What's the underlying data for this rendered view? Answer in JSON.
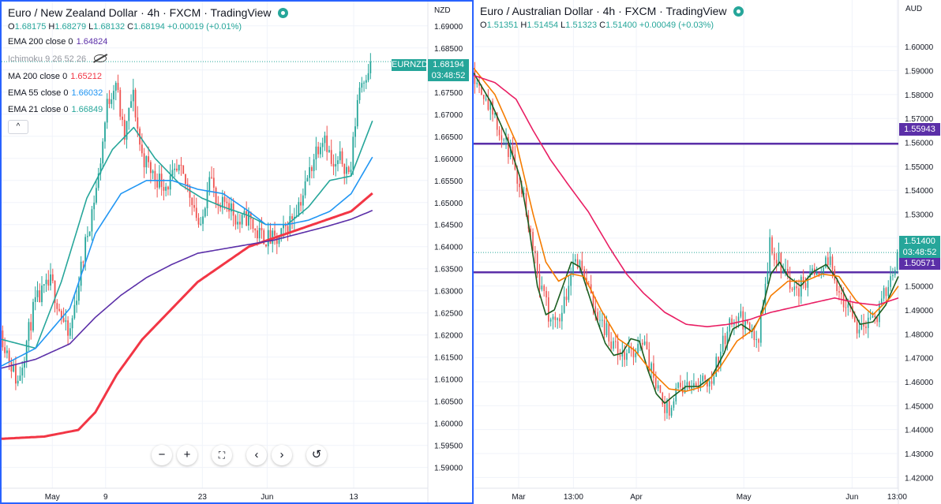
{
  "left": {
    "title": "Euro / New Zealand Dollar · 4h · FXCM · TradingView",
    "ohlc": {
      "o": "1.68175",
      "h": "1.68279",
      "l": "1.68132",
      "c": "1.68194",
      "chg": "+0.00019 (+0.01%)"
    },
    "indicators": [
      {
        "label": "EMA 200 close 0",
        "value": "1.64824",
        "color": "#5b2fa8"
      },
      {
        "label": "Ichimoku 9 26 52 26",
        "value": "",
        "color": "#9598a1",
        "hidden": true
      },
      {
        "label": "MA 200 close 0",
        "value": "1.65212",
        "color": "#f23645"
      },
      {
        "label": "EMA 55 close 0",
        "value": "1.66032",
        "color": "#2196f3"
      },
      {
        "label": "EMA 21 close 0",
        "value": "1.66849",
        "color": "#26a69a"
      }
    ],
    "collapse_label": "^",
    "currency": "NZD",
    "symbol_tag": "EURNZD",
    "last_price": "1.68194",
    "countdown": "03:48:52",
    "nav_buttons": [
      "−",
      "+",
      "⛶",
      "‹",
      "›",
      "↺"
    ]
  },
  "right": {
    "title": "Euro / Australian Dollar · 4h · FXCM · TradingView",
    "ohlc": {
      "o": "1.51351",
      "h": "1.51454",
      "l": "1.51323",
      "c": "1.51400",
      "chg": "+0.00049 (+0.03%)"
    },
    "currency": "AUD",
    "last_price": "1.51400",
    "countdown": "03:48:52",
    "level1_label": "1.55943",
    "level2_label": "1.50571"
  },
  "chart_data": [
    {
      "type": "candlestick",
      "symbol": "EURNZD",
      "timeframe": "4h",
      "title": "Euro / New Zealand Dollar · 4h · FXCM · TradingView",
      "currency": "NZD",
      "ylim": [
        1.5853,
        1.6955
      ],
      "yticks": [
        1.69,
        1.685,
        1.68,
        1.675,
        1.67,
        1.665,
        1.66,
        1.655,
        1.65,
        1.645,
        1.64,
        1.635,
        1.63,
        1.625,
        1.62,
        1.615,
        1.61,
        1.605,
        1.6,
        1.595,
        1.59
      ],
      "ytick_labels": [
        "1.69000",
        "1.68500",
        "1.68000",
        "1.67500",
        "1.67000",
        "1.66500",
        "1.66000",
        "1.65500",
        "1.65000",
        "1.64500",
        "1.64000",
        "1.63500",
        "1.63000",
        "1.62500",
        "1.62000",
        "1.61500",
        "1.61000",
        "1.60500",
        "1.60000",
        "1.59500",
        "1.59000"
      ],
      "xticks": [
        "May",
        "9",
        "23",
        "Jun",
        "13"
      ],
      "xtick_index": [
        0.119,
        0.244,
        0.471,
        0.623,
        0.826
      ],
      "price_anchors": [
        [
          0,
          1.621
        ],
        [
          0.04,
          1.609
        ],
        [
          0.08,
          1.627
        ],
        [
          0.119,
          1.632
        ],
        [
          0.16,
          1.619
        ],
        [
          0.2,
          1.641
        ],
        [
          0.23,
          1.656
        ],
        [
          0.25,
          1.672
        ],
        [
          0.27,
          1.678
        ],
        [
          0.29,
          1.664
        ],
        [
          0.31,
          1.675
        ],
        [
          0.33,
          1.661
        ],
        [
          0.36,
          1.656
        ],
        [
          0.39,
          1.654
        ],
        [
          0.42,
          1.657
        ],
        [
          0.45,
          1.651
        ],
        [
          0.47,
          1.643
        ],
        [
          0.49,
          1.658
        ],
        [
          0.51,
          1.647
        ],
        [
          0.53,
          1.651
        ],
        [
          0.56,
          1.645
        ],
        [
          0.58,
          1.647
        ],
        [
          0.6,
          1.643
        ],
        [
          0.623,
          1.642
        ],
        [
          0.65,
          1.641
        ],
        [
          0.68,
          1.646
        ],
        [
          0.71,
          1.652
        ],
        [
          0.74,
          1.662
        ],
        [
          0.76,
          1.666
        ],
        [
          0.78,
          1.657
        ],
        [
          0.8,
          1.66
        ],
        [
          0.82,
          1.656
        ],
        [
          0.84,
          1.676
        ],
        [
          0.86,
          1.68
        ],
        [
          0.868,
          1.6819
        ]
      ],
      "series": [
        {
          "name": "EMA 21 close 0",
          "color": "#26a69a",
          "points": [
            [
              0,
              1.619
            ],
            [
              0.08,
              1.617
            ],
            [
              0.14,
              1.632
            ],
            [
              0.2,
              1.651
            ],
            [
              0.26,
              1.662
            ],
            [
              0.31,
              1.667
            ],
            [
              0.36,
              1.66
            ],
            [
              0.42,
              1.654
            ],
            [
              0.47,
              1.651
            ],
            [
              0.52,
              1.649
            ],
            [
              0.58,
              1.647
            ],
            [
              0.62,
              1.645
            ],
            [
              0.67,
              1.645
            ],
            [
              0.72,
              1.649
            ],
            [
              0.77,
              1.655
            ],
            [
              0.82,
              1.656
            ],
            [
              0.87,
              1.6685
            ]
          ]
        },
        {
          "name": "EMA 55 close 0",
          "color": "#2196f3",
          "points": [
            [
              0,
              1.613
            ],
            [
              0.08,
              1.617
            ],
            [
              0.16,
              1.626
            ],
            [
              0.22,
              1.643
            ],
            [
              0.28,
              1.652
            ],
            [
              0.34,
              1.655
            ],
            [
              0.4,
              1.655
            ],
            [
              0.46,
              1.653
            ],
            [
              0.52,
              1.652
            ],
            [
              0.58,
              1.648
            ],
            [
              0.62,
              1.645
            ],
            [
              0.67,
              1.645
            ],
            [
              0.72,
              1.646
            ],
            [
              0.77,
              1.648
            ],
            [
              0.82,
              1.652
            ],
            [
              0.87,
              1.6603
            ]
          ]
        },
        {
          "name": "MA 200 close 0",
          "color": "#f23645",
          "points": [
            [
              0,
              1.5965
            ],
            [
              0.1,
              1.597
            ],
            [
              0.18,
              1.5985
            ],
            [
              0.22,
              1.6025
            ],
            [
              0.27,
              1.611
            ],
            [
              0.33,
              1.619
            ],
            [
              0.4,
              1.626
            ],
            [
              0.46,
              1.632
            ],
            [
              0.52,
              1.636
            ],
            [
              0.58,
              1.64
            ],
            [
              0.64,
              1.642
            ],
            [
              0.7,
              1.644
            ],
            [
              0.76,
              1.646
            ],
            [
              0.82,
              1.648
            ],
            [
              0.87,
              1.6521
            ]
          ]
        },
        {
          "name": "EMA 200 close 0",
          "color": "#5b2fa8",
          "points": [
            [
              0,
              1.6125
            ],
            [
              0.08,
              1.6145
            ],
            [
              0.16,
              1.618
            ],
            [
              0.22,
              1.624
            ],
            [
              0.28,
              1.629
            ],
            [
              0.34,
              1.633
            ],
            [
              0.4,
              1.636
            ],
            [
              0.46,
              1.6385
            ],
            [
              0.52,
              1.6395
            ],
            [
              0.58,
              1.6405
            ],
            [
              0.64,
              1.6415
            ],
            [
              0.7,
              1.643
            ],
            [
              0.76,
              1.6445
            ],
            [
              0.82,
              1.6462
            ],
            [
              0.87,
              1.6482
            ]
          ]
        }
      ]
    },
    {
      "type": "candlestick",
      "symbol": "EURAUD",
      "timeframe": "4h",
      "title": "Euro / Australian Dollar · 4h · FXCM · TradingView",
      "currency": "AUD",
      "ylim": [
        1.4155,
        1.6195
      ],
      "yticks": [
        1.6,
        1.59,
        1.58,
        1.57,
        1.56,
        1.55,
        1.54,
        1.53,
        1.52,
        1.51,
        1.5,
        1.49,
        1.48,
        1.47,
        1.46,
        1.45,
        1.44,
        1.43,
        1.42
      ],
      "ytick_labels": [
        "1.60000",
        "1.59000",
        "1.58000",
        "1.57000",
        "1.56000",
        "1.55000",
        "1.54000",
        "1.53000",
        "1.52000",
        "1.51000",
        "1.50000",
        "1.49000",
        "1.48000",
        "1.47000",
        "1.46000",
        "1.45000",
        "1.44000",
        "1.43000",
        "1.42000"
      ],
      "xticks": [
        "Mar",
        "13:00",
        "Apr",
        "May",
        "Jun",
        "13:00"
      ],
      "xtick_index": [
        0.106,
        0.235,
        0.383,
        0.636,
        0.891,
        0.997
      ],
      "levels": [
        {
          "price": 1.55943,
          "color": "#5b2fa8"
        },
        {
          "price": 1.50571,
          "color": "#5b2fa8"
        }
      ],
      "price_anchors": [
        [
          0,
          1.59
        ],
        [
          0.03,
          1.58
        ],
        [
          0.06,
          1.565
        ],
        [
          0.09,
          1.555
        ],
        [
          0.12,
          1.538
        ],
        [
          0.14,
          1.52
        ],
        [
          0.16,
          1.5
        ],
        [
          0.18,
          1.488
        ],
        [
          0.2,
          1.485
        ],
        [
          0.22,
          1.497
        ],
        [
          0.24,
          1.514
        ],
        [
          0.26,
          1.506
        ],
        [
          0.28,
          1.495
        ],
        [
          0.3,
          1.486
        ],
        [
          0.32,
          1.48
        ],
        [
          0.34,
          1.472
        ],
        [
          0.36,
          1.47
        ],
        [
          0.38,
          1.473
        ],
        [
          0.4,
          1.478
        ],
        [
          0.42,
          1.465
        ],
        [
          0.44,
          1.453
        ],
        [
          0.46,
          1.448
        ],
        [
          0.48,
          1.457
        ],
        [
          0.5,
          1.458
        ],
        [
          0.52,
          1.457
        ],
        [
          0.54,
          1.462
        ],
        [
          0.56,
          1.461
        ],
        [
          0.58,
          1.47
        ],
        [
          0.6,
          1.482
        ],
        [
          0.62,
          1.487
        ],
        [
          0.64,
          1.485
        ],
        [
          0.66,
          1.479
        ],
        [
          0.67,
          1.474
        ],
        [
          0.69,
          1.5
        ],
        [
          0.7,
          1.517
        ],
        [
          0.72,
          1.511
        ],
        [
          0.74,
          1.505
        ],
        [
          0.76,
          1.497
        ],
        [
          0.78,
          1.502
        ],
        [
          0.8,
          1.506
        ],
        [
          0.82,
          1.508
        ],
        [
          0.84,
          1.51
        ],
        [
          0.86,
          1.5
        ],
        [
          0.88,
          1.492
        ],
        [
          0.9,
          1.484
        ],
        [
          0.92,
          1.484
        ],
        [
          0.94,
          1.483
        ],
        [
          0.96,
          1.492
        ],
        [
          0.98,
          1.5
        ],
        [
          1.0,
          1.514
        ]
      ],
      "series": [
        {
          "name": "fast MA",
          "color": "#1b5e20",
          "points": [
            [
              0,
              1.589
            ],
            [
              0.04,
              1.577
            ],
            [
              0.08,
              1.561
            ],
            [
              0.11,
              1.545
            ],
            [
              0.13,
              1.525
            ],
            [
              0.15,
              1.5
            ],
            [
              0.17,
              1.488
            ],
            [
              0.19,
              1.49
            ],
            [
              0.21,
              1.5
            ],
            [
              0.23,
              1.51
            ],
            [
              0.25,
              1.508
            ],
            [
              0.27,
              1.497
            ],
            [
              0.29,
              1.486
            ],
            [
              0.31,
              1.476
            ],
            [
              0.33,
              1.471
            ],
            [
              0.35,
              1.472
            ],
            [
              0.37,
              1.478
            ],
            [
              0.39,
              1.477
            ],
            [
              0.41,
              1.465
            ],
            [
              0.43,
              1.455
            ],
            [
              0.45,
              1.451
            ],
            [
              0.47,
              1.454
            ],
            [
              0.5,
              1.458
            ],
            [
              0.53,
              1.458
            ],
            [
              0.56,
              1.462
            ],
            [
              0.59,
              1.472
            ],
            [
              0.61,
              1.482
            ],
            [
              0.63,
              1.484
            ],
            [
              0.655,
              1.481
            ],
            [
              0.675,
              1.487
            ],
            [
              0.7,
              1.505
            ],
            [
              0.72,
              1.51
            ],
            [
              0.74,
              1.504
            ],
            [
              0.77,
              1.5
            ],
            [
              0.8,
              1.506
            ],
            [
              0.83,
              1.509
            ],
            [
              0.855,
              1.503
            ],
            [
              0.88,
              1.494
            ],
            [
              0.91,
              1.484
            ],
            [
              0.94,
              1.485
            ],
            [
              0.97,
              1.492
            ],
            [
              1.0,
              1.504
            ]
          ]
        },
        {
          "name": "mid MA",
          "color": "#f57c00",
          "points": [
            [
              0,
              1.591
            ],
            [
              0.05,
              1.58
            ],
            [
              0.1,
              1.56
            ],
            [
              0.14,
              1.53
            ],
            [
              0.17,
              1.51
            ],
            [
              0.2,
              1.502
            ],
            [
              0.23,
              1.505
            ],
            [
              0.26,
              1.504
            ],
            [
              0.3,
              1.49
            ],
            [
              0.34,
              1.478
            ],
            [
              0.38,
              1.473
            ],
            [
              0.42,
              1.464
            ],
            [
              0.46,
              1.457
            ],
            [
              0.5,
              1.456
            ],
            [
              0.54,
              1.458
            ],
            [
              0.58,
              1.466
            ],
            [
              0.62,
              1.477
            ],
            [
              0.66,
              1.482
            ],
            [
              0.7,
              1.496
            ],
            [
              0.74,
              1.502
            ],
            [
              0.78,
              1.502
            ],
            [
              0.82,
              1.505
            ],
            [
              0.86,
              1.504
            ],
            [
              0.9,
              1.494
            ],
            [
              0.94,
              1.488
            ],
            [
              0.98,
              1.495
            ],
            [
              1.0,
              1.5
            ]
          ]
        },
        {
          "name": "slow MA",
          "color": "#e91e63",
          "points": [
            [
              0,
              1.588
            ],
            [
              0.05,
              1.585
            ],
            [
              0.1,
              1.578
            ],
            [
              0.14,
              1.565
            ],
            [
              0.18,
              1.553
            ],
            [
              0.22,
              1.543
            ],
            [
              0.27,
              1.531
            ],
            [
              0.32,
              1.516
            ],
            [
              0.36,
              1.505
            ],
            [
              0.4,
              1.497
            ],
            [
              0.45,
              1.489
            ],
            [
              0.5,
              1.484
            ],
            [
              0.55,
              1.483
            ],
            [
              0.6,
              1.484
            ],
            [
              0.65,
              1.486
            ],
            [
              0.7,
              1.489
            ],
            [
              0.75,
              1.491
            ],
            [
              0.8,
              1.493
            ],
            [
              0.85,
              1.495
            ],
            [
              0.9,
              1.493
            ],
            [
              0.95,
              1.492
            ],
            [
              1.0,
              1.495
            ]
          ]
        }
      ]
    }
  ]
}
